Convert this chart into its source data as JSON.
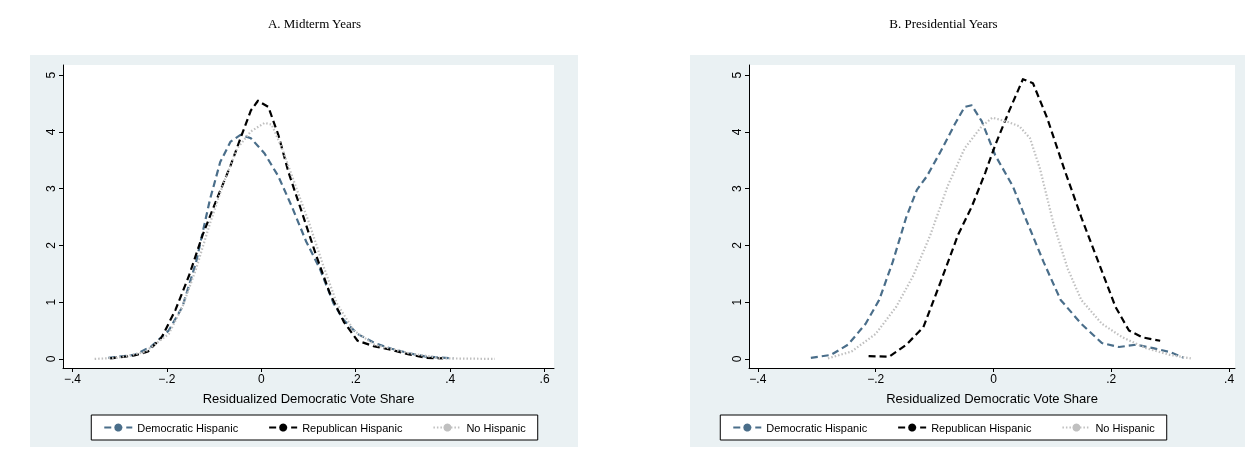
{
  "chart_data": [
    {
      "type": "line",
      "title": "A. Midterm Years",
      "xlabel": "Residualized Democratic Vote Share",
      "legend": "bottom",
      "grid": false,
      "marker": "none",
      "xlim": [
        -0.42,
        0.62
      ],
      "xticks": [
        {
          "value": -0.4,
          "label": "−.4"
        },
        {
          "value": -0.2,
          "label": "−.2"
        },
        0,
        {
          "value": 0.2,
          "label": ".2"
        },
        {
          "value": 0.4,
          "label": ".4"
        },
        {
          "value": 0.6,
          "label": ".6"
        }
      ],
      "ylim": [
        -0.16,
        5.18
      ],
      "yticks": [
        0,
        1,
        2,
        3,
        4,
        5
      ],
      "series": [
        {
          "name": "Democratic Hispanic",
          "color": "#4a6e8a",
          "line_style": "dashed",
          "x": [
            -0.324,
            -0.269,
            -0.233,
            -0.196,
            -0.167,
            -0.138,
            -0.109,
            -0.087,
            -0.065,
            -0.044,
            -0.022,
            0.007,
            0.036,
            0.065,
            0.095,
            0.124,
            0.153,
            0.175,
            0.204,
            0.24,
            0.276,
            0.313,
            0.349,
            0.407
          ],
          "values": [
            0.02,
            0.07,
            0.22,
            0.5,
            0.92,
            1.71,
            2.8,
            3.47,
            3.83,
            3.95,
            3.89,
            3.62,
            3.22,
            2.68,
            2.07,
            1.59,
            0.98,
            0.68,
            0.44,
            0.28,
            0.18,
            0.1,
            0.04,
            0.01
          ]
        },
        {
          "name": "Republican Hispanic",
          "color": "#000000",
          "line_style": "dashed",
          "x": [
            -0.32,
            -0.269,
            -0.24,
            -0.211,
            -0.182,
            -0.153,
            -0.124,
            -0.095,
            -0.065,
            -0.044,
            -0.022,
            -0.007,
            0.015,
            0.036,
            0.058,
            0.087,
            0.116,
            0.145,
            0.175,
            0.204,
            0.24,
            0.276,
            0.313,
            0.349,
            0.385
          ],
          "values": [
            0.01,
            0.06,
            0.13,
            0.38,
            0.86,
            1.47,
            2.19,
            2.8,
            3.41,
            3.89,
            4.38,
            4.55,
            4.44,
            3.95,
            3.28,
            2.56,
            1.83,
            1.16,
            0.65,
            0.32,
            0.22,
            0.16,
            0.08,
            0.02,
            0.01
          ]
        },
        {
          "name": "No Hispanic",
          "color": "#c0c0c0",
          "line_style": "dotted",
          "x": [
            -0.353,
            -0.305,
            -0.247,
            -0.196,
            -0.167,
            -0.138,
            -0.109,
            -0.08,
            -0.051,
            -0.022,
            0.007,
            0.022,
            0.044,
            0.073,
            0.102,
            0.131,
            0.16,
            0.196,
            0.24,
            0.313,
            0.385,
            0.495
          ],
          "values": [
            0,
            0.02,
            0.12,
            0.44,
            0.92,
            1.59,
            2.38,
            3.1,
            3.71,
            4.01,
            4.16,
            4.13,
            3.71,
            3.04,
            2.38,
            1.65,
            0.98,
            0.5,
            0.25,
            0.1,
            0.01,
            0
          ]
        }
      ]
    },
    {
      "type": "line",
      "title": "B. Presidential Years",
      "xlabel": "Residualized Democratic Vote Share",
      "legend": "bottom",
      "grid": false,
      "marker": "none",
      "xlim": [
        -0.415,
        0.41
      ],
      "xticks": [
        {
          "value": -0.4,
          "label": "−.4"
        },
        {
          "value": -0.2,
          "label": "−.2"
        },
        0,
        {
          "value": 0.2,
          "label": ".2"
        },
        {
          "value": 0.4,
          "label": ".4"
        }
      ],
      "ylim": [
        -0.16,
        5.18
      ],
      "yticks": [
        0,
        1,
        2,
        3,
        4,
        5
      ],
      "series": [
        {
          "name": "Democratic Hispanic",
          "color": "#4a6e8a",
          "line_style": "dashed",
          "x": [
            -0.31,
            -0.276,
            -0.247,
            -0.217,
            -0.194,
            -0.171,
            -0.148,
            -0.13,
            -0.113,
            -0.09,
            -0.066,
            -0.049,
            -0.037,
            -0.02,
            0.003,
            0.033,
            0.056,
            0.085,
            0.114,
            0.149,
            0.184,
            0.213,
            0.242,
            0.271,
            0.3,
            0.323
          ],
          "values": [
            0.02,
            0.07,
            0.25,
            0.62,
            1.04,
            1.71,
            2.5,
            2.98,
            3.22,
            3.65,
            4.13,
            4.44,
            4.47,
            4.19,
            3.59,
            3.04,
            2.44,
            1.71,
            1.04,
            0.62,
            0.28,
            0.21,
            0.25,
            0.19,
            0.12,
            0.02
          ]
        },
        {
          "name": "Republican Hispanic",
          "color": "#000000",
          "line_style": "dashed",
          "x": [
            -0.212,
            -0.177,
            -0.148,
            -0.119,
            -0.09,
            -0.06,
            -0.037,
            -0.014,
            0.003,
            0.027,
            0.05,
            0.067,
            0.091,
            0.12,
            0.149,
            0.178,
            0.207,
            0.23,
            0.253,
            0.283
          ],
          "values": [
            0.05,
            0.04,
            0.25,
            0.56,
            1.35,
            2.19,
            2.68,
            3.28,
            3.77,
            4.38,
            4.93,
            4.86,
            4.25,
            3.35,
            2.5,
            1.71,
            0.92,
            0.5,
            0.38,
            0.32
          ]
        },
        {
          "name": "No Hispanic",
          "color": "#c0c0c0",
          "line_style": "dotted",
          "x": [
            -0.281,
            -0.241,
            -0.2,
            -0.165,
            -0.136,
            -0.107,
            -0.078,
            -0.049,
            -0.02,
            -0.002,
            0.021,
            0.044,
            0.062,
            0.079,
            0.102,
            0.126,
            0.149,
            0.184,
            0.219,
            0.259,
            0.3,
            0.335
          ],
          "values": [
            0.01,
            0.13,
            0.44,
            0.92,
            1.47,
            2.19,
            3.04,
            3.71,
            4.1,
            4.25,
            4.19,
            4.1,
            3.89,
            3.35,
            2.38,
            1.59,
            1.04,
            0.62,
            0.38,
            0.19,
            0.07,
            0.01
          ]
        }
      ]
    }
  ]
}
